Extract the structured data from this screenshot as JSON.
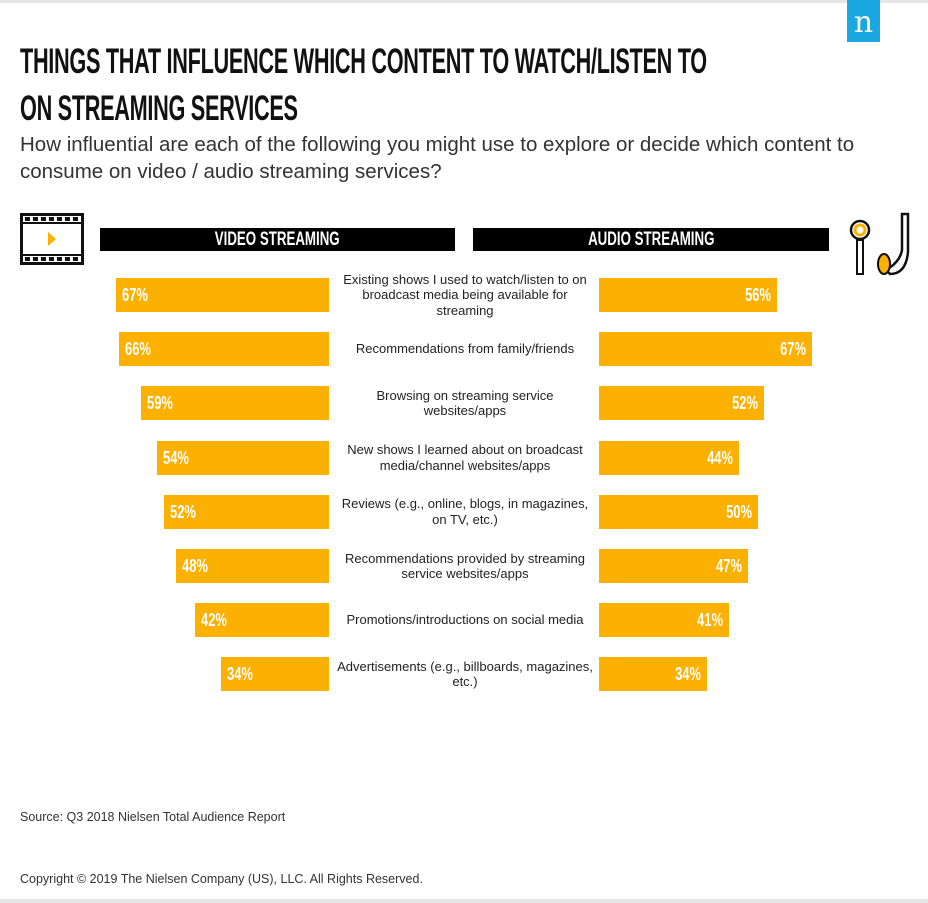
{
  "logo_text": "n",
  "title_lines": [
    "THINGS THAT INFLUENCE WHICH CONTENT TO WATCH/LISTEN TO",
    "ON STREAMING SERVICES"
  ],
  "subtitle": "How influential are each of the following you might use to explore or decide which content to consume on video / audio streaming services?",
  "icons": {
    "video": "film-play-icon",
    "audio": "earphones-icon"
  },
  "colors": {
    "bar": "#fcb000",
    "header": "#000000",
    "logo": "#1ba7e0"
  },
  "chart_data": {
    "type": "bar",
    "orientation": "horizontal-butterfly",
    "title": "THINGS THAT INFLUENCE WHICH CONTENT TO WATCH/LISTEN TO ON STREAMING SERVICES",
    "categories": [
      "Existing shows I used to watch/listen to on broadcast media being available for streaming",
      "Recommendations from family/friends",
      "Browsing on streaming service websites/apps",
      "New shows I learned about on broadcast media/channel websites/apps",
      "Reviews (e.g., online, blogs, in magazines, on TV, etc.)",
      "Recommendations provided by streaming service websites/apps",
      "Promotions/introductions on social media",
      "Advertisements (e.g., billboards, magazines, etc.)"
    ],
    "series": [
      {
        "name": "VIDEO STREAMING",
        "values": [
          67,
          66,
          59,
          54,
          52,
          48,
          42,
          34
        ]
      },
      {
        "name": "AUDIO STREAMING",
        "values": [
          56,
          67,
          52,
          44,
          50,
          47,
          41,
          34
        ]
      }
    ],
    "value_suffix": "%",
    "xlim": [
      0,
      67
    ]
  },
  "footer": {
    "source": "Source: Q3 2018 Nielsen Total Audience Report",
    "copyright": "Copyright © 2019 The Nielsen Company (US), LLC. All Rights Reserved."
  }
}
